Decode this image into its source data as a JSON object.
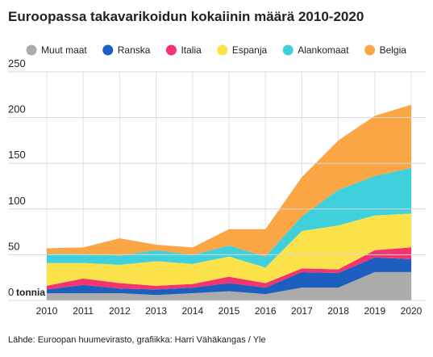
{
  "chart_data": {
    "type": "stacked-area",
    "title": "Euroopassa takavarikoidun kokaiinin määrä 2010-2020",
    "y_label": "tonnia",
    "source": "Lähde: Euroopan huumevirasto, grafiikka: Harri Vähäkangas / Yle",
    "x": [
      2010,
      2011,
      2012,
      2013,
      2014,
      2015,
      2016,
      2017,
      2018,
      2019,
      2020
    ],
    "xlim": [
      2010,
      2020
    ],
    "xticks": [
      2010,
      2011,
      2012,
      2013,
      2014,
      2015,
      2016,
      2017,
      2018,
      2019,
      2020
    ],
    "ylim": [
      0,
      250
    ],
    "yticks": [
      0,
      50,
      100,
      150,
      200,
      250
    ],
    "grid": true,
    "legend": "top",
    "series": [
      {
        "name": "Muut maat",
        "color": "#ababab",
        "values": [
          8,
          8,
          8,
          6,
          8,
          10,
          7,
          14,
          14,
          31,
          31
        ]
      },
      {
        "name": "Ranska",
        "color": "#1d5fbf",
        "values": [
          4,
          9,
          5,
          6,
          6,
          9,
          7,
          17,
          16,
          16,
          14
        ]
      },
      {
        "name": "Italia",
        "color": "#f2346f",
        "values": [
          4,
          7,
          6,
          4,
          4,
          7,
          5,
          4,
          4,
          8,
          13
        ]
      },
      {
        "name": "Espanja",
        "color": "#fbe24a",
        "values": [
          25,
          17,
          20,
          27,
          22,
          22,
          17,
          41,
          48,
          38,
          37
        ]
      },
      {
        "name": "Alankomaat",
        "color": "#40d0dc",
        "values": [
          10,
          10,
          10,
          12,
          10,
          12,
          12,
          16,
          39,
          43,
          50
        ]
      },
      {
        "name": "Belgia",
        "color": "#fba645",
        "values": [
          6,
          7,
          19,
          6,
          8,
          18,
          30,
          43,
          54,
          66,
          69
        ]
      }
    ]
  }
}
